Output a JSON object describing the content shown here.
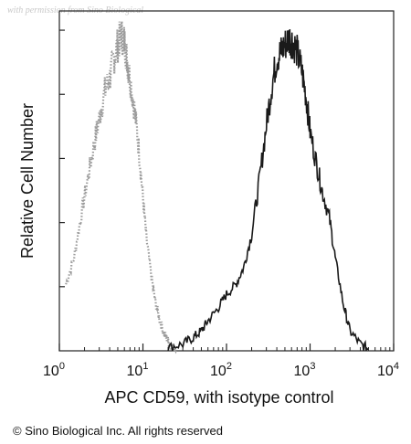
{
  "watermark": "with permission from Sino Biological",
  "copyright": "© Sino Biological Inc. All rights reserved",
  "chart_data": {
    "type": "area",
    "title": "",
    "xlabel": "APC CD59, with isotype control",
    "ylabel": "Relative Cell Number",
    "xscale": "log",
    "xlim": [
      1,
      10000
    ],
    "ylim": [
      0,
      100
    ],
    "grid": false,
    "x_ticks": [
      {
        "base": "10",
        "exp": "0",
        "value": 1
      },
      {
        "base": "10",
        "exp": "1",
        "value": 10
      },
      {
        "base": "10",
        "exp": "2",
        "value": 100
      },
      {
        "base": "10",
        "exp": "3",
        "value": 1000
      },
      {
        "base": "10",
        "exp": "4",
        "value": 10000
      }
    ],
    "series": [
      {
        "style": "dotted",
        "color": "#9a9a9a",
        "x": [
          1.2,
          1.5,
          1.8,
          2.2,
          2.6,
          3.0,
          3.5,
          4.0,
          4.5,
          5.0,
          5.5,
          6.0,
          6.5,
          7.0,
          8.0,
          9.0,
          10,
          11,
          12.5,
          14,
          16,
          18,
          20,
          22,
          25
        ],
        "y": [
          20,
          28,
          40,
          52,
          62,
          70,
          78,
          82,
          88,
          92,
          95,
          93,
          87,
          82,
          72,
          60,
          46,
          34,
          23,
          15,
          9,
          5,
          3,
          1.5,
          0.5
        ]
      },
      {
        "style": "solid",
        "color": "#1a1a1a",
        "x": [
          20,
          30,
          40,
          50,
          60,
          80,
          100,
          130,
          160,
          200,
          250,
          300,
          350,
          400,
          450,
          500,
          560,
          620,
          700,
          800,
          900,
          1000,
          1200,
          1400,
          1700,
          2000,
          2500,
          3000,
          4000,
          5000
        ],
        "y": [
          1,
          2,
          4,
          6,
          9,
          13,
          17,
          20,
          25,
          35,
          52,
          68,
          80,
          88,
          90,
          92,
          94,
          93,
          90,
          84,
          76,
          66,
          56,
          48,
          40,
          28,
          14,
          6,
          2,
          0.5
        ]
      }
    ]
  }
}
